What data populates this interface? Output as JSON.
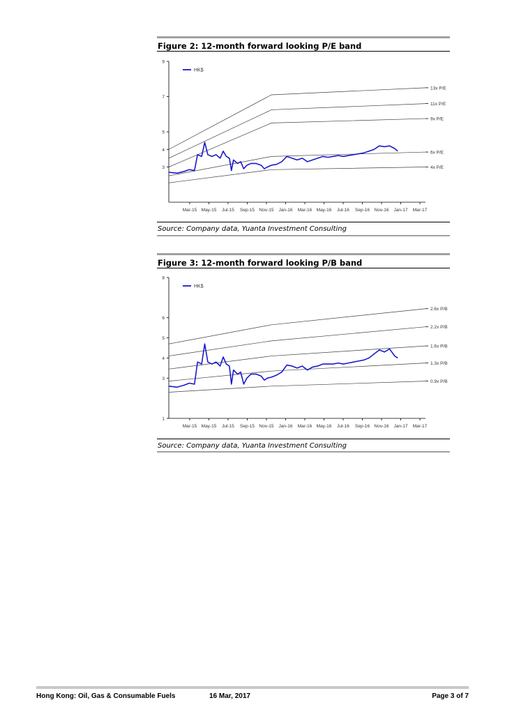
{
  "figures": [
    {
      "title": "Figure 2: 12-month forward looking P/E band",
      "source": "Source: Company data, Yuanta Investment Consulting"
    },
    {
      "title": "Figure 3: 12-month forward looking P/B band",
      "source": "Source: Company data, Yuanta Investment Consulting"
    }
  ],
  "footer": {
    "left": "Hong Kong: Oil, Gas & Consumable Fuels",
    "date": "16 Mar, 2017",
    "page": "Page 3 of 7"
  },
  "colors": {
    "price_line": "#1a1acc",
    "band_line": "#404040",
    "rule": "#a0a0a0"
  },
  "chart_data": [
    {
      "type": "line",
      "title": "",
      "x_ticks": [
        "Mar-15",
        "May-15",
        "Jul-15",
        "Sep-15",
        "Nov-15",
        "Jan-16",
        "Mar-16",
        "May-16",
        "Jul-16",
        "Sep-16",
        "Nov-16",
        "Jan-17",
        "Mar-17"
      ],
      "ylim": [
        1,
        9
      ],
      "y_ticks": [
        9,
        7,
        5,
        4,
        3
      ],
      "x_months": [
        0,
        25
      ],
      "bands": [
        {
          "name": "13x P/E",
          "points": [
            [
              0,
              4.0
            ],
            [
              10,
              7.1
            ],
            [
              25,
              7.5
            ]
          ]
        },
        {
          "name": "11x P/E",
          "points": [
            [
              0,
              3.5
            ],
            [
              10,
              6.25
            ],
            [
              25,
              6.6
            ]
          ]
        },
        {
          "name": "9x P/E",
          "points": [
            [
              0,
              3.0
            ],
            [
              10,
              5.5
            ],
            [
              25,
              5.75
            ]
          ]
        },
        {
          "name": "6x P/E",
          "points": [
            [
              0,
              2.5
            ],
            [
              10,
              3.6
            ],
            [
              25,
              3.85
            ]
          ]
        },
        {
          "name": "4x P/E",
          "points": [
            [
              0,
              2.1
            ],
            [
              10,
              2.85
            ],
            [
              25,
              3.0
            ]
          ]
        }
      ],
      "series": [
        {
          "name": "HK$",
          "points": [
            [
              0,
              2.7
            ],
            [
              0.8,
              2.65
            ],
            [
              1.5,
              2.75
            ],
            [
              2,
              2.85
            ],
            [
              2.5,
              2.8
            ],
            [
              2.8,
              3.7
            ],
            [
              3.2,
              3.6
            ],
            [
              3.5,
              4.4
            ],
            [
              3.8,
              3.7
            ],
            [
              4.2,
              3.6
            ],
            [
              4.6,
              3.7
            ],
            [
              5.0,
              3.5
            ],
            [
              5.3,
              3.9
            ],
            [
              5.6,
              3.6
            ],
            [
              5.9,
              3.5
            ],
            [
              6.1,
              2.8
            ],
            [
              6.3,
              3.4
            ],
            [
              6.7,
              3.2
            ],
            [
              7.0,
              3.3
            ],
            [
              7.3,
              2.9
            ],
            [
              7.6,
              3.1
            ],
            [
              8.0,
              3.2
            ],
            [
              8.5,
              3.2
            ],
            [
              9.0,
              3.1
            ],
            [
              9.3,
              2.9
            ],
            [
              9.6,
              3.0
            ],
            [
              10.0,
              3.1
            ],
            [
              10.5,
              3.15
            ],
            [
              11.0,
              3.3
            ],
            [
              11.5,
              3.6
            ],
            [
              12.0,
              3.5
            ],
            [
              12.5,
              3.4
            ],
            [
              13.0,
              3.5
            ],
            [
              13.5,
              3.3
            ],
            [
              14.0,
              3.4
            ],
            [
              14.5,
              3.5
            ],
            [
              15.0,
              3.6
            ],
            [
              15.5,
              3.55
            ],
            [
              16.0,
              3.6
            ],
            [
              16.5,
              3.65
            ],
            [
              17.0,
              3.6
            ],
            [
              17.5,
              3.65
            ],
            [
              18.0,
              3.7
            ],
            [
              18.5,
              3.75
            ],
            [
              19.0,
              3.8
            ],
            [
              19.5,
              3.9
            ],
            [
              20.0,
              4.0
            ],
            [
              20.5,
              4.2
            ],
            [
              21.0,
              4.15
            ],
            [
              21.5,
              4.2
            ],
            [
              22.0,
              4.05
            ],
            [
              22.3,
              3.9
            ]
          ]
        }
      ]
    },
    {
      "type": "line",
      "title": "",
      "x_ticks": [
        "Mar-15",
        "May-15",
        "Jul-15",
        "Sep-15",
        "Nov-15",
        "Jan-16",
        "Mar-16",
        "May-16",
        "Jul-16",
        "Sep-16",
        "Nov-16",
        "Jan-17",
        "Mar-17"
      ],
      "ylim": [
        1,
        8
      ],
      "y_ticks": [
        8,
        6,
        5,
        4,
        3,
        1
      ],
      "x_months": [
        0,
        25
      ],
      "bands": [
        {
          "name": "2.6x P/B",
          "points": [
            [
              0,
              4.7
            ],
            [
              10,
              5.65
            ],
            [
              25,
              6.45
            ]
          ]
        },
        {
          "name": "2.2x P/B",
          "points": [
            [
              0,
              4.1
            ],
            [
              10,
              4.85
            ],
            [
              25,
              5.55
            ]
          ]
        },
        {
          "name": "1.6x P/B",
          "points": [
            [
              0,
              3.45
            ],
            [
              10,
              4.1
            ],
            [
              25,
              4.6
            ]
          ]
        },
        {
          "name": "1.3x P/B",
          "points": [
            [
              0,
              2.85
            ],
            [
              10,
              3.35
            ],
            [
              25,
              3.75
            ]
          ]
        },
        {
          "name": "0.9x P/B",
          "points": [
            [
              0,
              2.3
            ],
            [
              10,
              2.6
            ],
            [
              25,
              2.85
            ]
          ]
        }
      ],
      "series": [
        {
          "name": "HK$",
          "points": [
            [
              0,
              2.6
            ],
            [
              0.8,
              2.55
            ],
            [
              1.5,
              2.65
            ],
            [
              2,
              2.75
            ],
            [
              2.5,
              2.7
            ],
            [
              2.8,
              3.8
            ],
            [
              3.2,
              3.7
            ],
            [
              3.5,
              4.7
            ],
            [
              3.8,
              3.8
            ],
            [
              4.2,
              3.7
            ],
            [
              4.6,
              3.8
            ],
            [
              5.0,
              3.6
            ],
            [
              5.3,
              4.05
            ],
            [
              5.6,
              3.7
            ],
            [
              5.9,
              3.6
            ],
            [
              6.1,
              2.7
            ],
            [
              6.3,
              3.4
            ],
            [
              6.7,
              3.2
            ],
            [
              7.0,
              3.3
            ],
            [
              7.3,
              2.7
            ],
            [
              7.6,
              3.0
            ],
            [
              8.0,
              3.2
            ],
            [
              8.5,
              3.2
            ],
            [
              9.0,
              3.1
            ],
            [
              9.3,
              2.9
            ],
            [
              9.6,
              3.0
            ],
            [
              10.0,
              3.05
            ],
            [
              10.5,
              3.15
            ],
            [
              11.0,
              3.3
            ],
            [
              11.5,
              3.65
            ],
            [
              12.0,
              3.6
            ],
            [
              12.5,
              3.5
            ],
            [
              13.0,
              3.6
            ],
            [
              13.5,
              3.4
            ],
            [
              14.0,
              3.55
            ],
            [
              14.5,
              3.6
            ],
            [
              15.0,
              3.7
            ],
            [
              15.5,
              3.7
            ],
            [
              16.0,
              3.7
            ],
            [
              16.5,
              3.75
            ],
            [
              17.0,
              3.7
            ],
            [
              17.5,
              3.75
            ],
            [
              18.0,
              3.8
            ],
            [
              18.5,
              3.85
            ],
            [
              19.0,
              3.9
            ],
            [
              19.5,
              4.0
            ],
            [
              20.0,
              4.2
            ],
            [
              20.5,
              4.4
            ],
            [
              21.0,
              4.3
            ],
            [
              21.5,
              4.45
            ],
            [
              22.0,
              4.1
            ],
            [
              22.3,
              4.0
            ]
          ]
        }
      ]
    }
  ]
}
